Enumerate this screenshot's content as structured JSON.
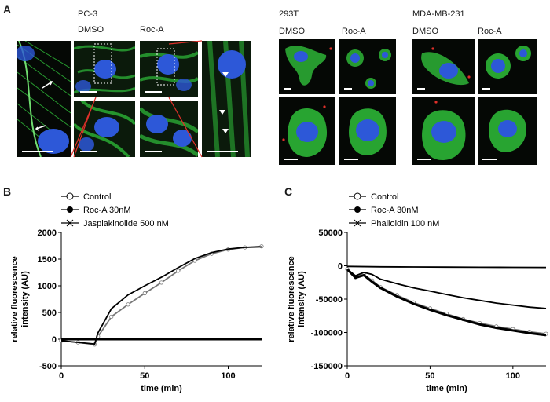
{
  "panels": {
    "a": {
      "letter": "A",
      "groups": [
        {
          "cell_line": "PC-3",
          "conditions": [
            "DMSO",
            "Roc-A"
          ]
        },
        {
          "cell_line": "293T",
          "conditions": [
            "DMSO",
            "Roc-A"
          ]
        },
        {
          "cell_line": "MDA-MB-231",
          "conditions": [
            "DMSO",
            "Roc-A"
          ]
        }
      ]
    },
    "b": {
      "letter": "B"
    },
    "c": {
      "letter": "C"
    }
  },
  "colors": {
    "actin": "#2fbf3a",
    "nucleus": "#2d58d8",
    "red_marker": "#e0302a",
    "zoom_line": "#e0302a"
  },
  "chart_data": [
    {
      "type": "line",
      "panel": "B",
      "xlabel": "time (min)",
      "ylabel": "relative fluorescence intensity (AU)",
      "xlim": [
        0,
        120
      ],
      "ylim": [
        -500,
        2000
      ],
      "xticks": [
        0,
        50,
        100
      ],
      "yticks": [
        -500,
        0,
        500,
        1000,
        1500,
        2000
      ],
      "series": [
        {
          "name": "Control",
          "marker": "open-circle",
          "x": [
            0,
            10,
            20,
            22,
            30,
            40,
            50,
            60,
            70,
            80,
            90,
            100,
            110,
            120
          ],
          "y": [
            -30,
            -60,
            -100,
            50,
            420,
            650,
            860,
            1060,
            1280,
            1470,
            1600,
            1680,
            1720,
            1740
          ]
        },
        {
          "name": "Roc-A 30nM",
          "marker": "filled-circle",
          "x": [
            0,
            20,
            40,
            60,
            80,
            100,
            120
          ],
          "y": [
            0,
            0,
            0,
            0,
            0,
            0,
            0
          ]
        },
        {
          "name": "Jasplakinolide 500 nM",
          "marker": "cross",
          "x": [
            0,
            10,
            20,
            22,
            30,
            40,
            50,
            60,
            70,
            80,
            90,
            100,
            110,
            120
          ],
          "y": [
            -30,
            -60,
            -90,
            120,
            570,
            830,
            1000,
            1160,
            1340,
            1510,
            1620,
            1690,
            1720,
            1730
          ]
        }
      ]
    },
    {
      "type": "line",
      "panel": "C",
      "xlabel": "time (min)",
      "ylabel": "relative fluorescence intensity (AU)",
      "xlim": [
        0,
        120
      ],
      "ylim": [
        -150000,
        50000
      ],
      "xticks": [
        0,
        50,
        100
      ],
      "yticks": [
        -150000,
        -100000,
        -50000,
        0,
        50000
      ],
      "series": [
        {
          "name": "Control",
          "marker": "open-circle",
          "x": [
            0,
            5,
            10,
            15,
            20,
            30,
            40,
            50,
            60,
            70,
            80,
            90,
            100,
            110,
            120
          ],
          "y": [
            -5000,
            -17000,
            -13000,
            -22000,
            -32000,
            -44000,
            -55000,
            -64000,
            -72000,
            -80000,
            -86000,
            -91000,
            -95000,
            -99000,
            -102000
          ]
        },
        {
          "name": "Roc-A 30nM",
          "marker": "filled-circle",
          "x": [
            0,
            5,
            10,
            15,
            20,
            30,
            40,
            50,
            60,
            70,
            80,
            90,
            100,
            110,
            120
          ],
          "y": [
            -5000,
            -18000,
            -14000,
            -24000,
            -33000,
            -46000,
            -57000,
            -66000,
            -74000,
            -81000,
            -88000,
            -93000,
            -97000,
            -101000,
            -104000
          ]
        },
        {
          "name": "Phalloidin 100 nM",
          "marker": "cross",
          "x": [
            0,
            20,
            40,
            60,
            80,
            100,
            120
          ],
          "y": [
            -1000,
            -1500,
            -1800,
            -2000,
            -2200,
            -2400,
            -2500
          ]
        },
        {
          "name": "",
          "marker": "none",
          "x": [
            0,
            5,
            10,
            15,
            20,
            30,
            40,
            50,
            60,
            70,
            80,
            90,
            100,
            110,
            120
          ],
          "y": [
            -5000,
            -15000,
            -10000,
            -13000,
            -20000,
            -27000,
            -33000,
            -38000,
            -43000,
            -48000,
            -52000,
            -56000,
            -59000,
            -62000,
            -64000
          ]
        }
      ]
    }
  ]
}
